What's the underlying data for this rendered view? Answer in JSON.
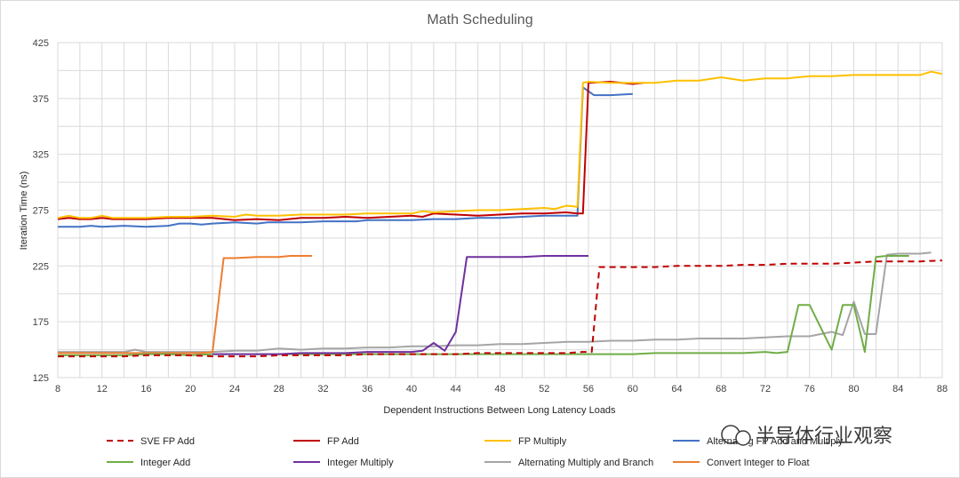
{
  "chart_data": {
    "type": "line",
    "title": "Math Scheduling",
    "xlabel": "Dependent  Instructions Between Long Latency Loads",
    "ylabel": "Iteration Time (ns)",
    "xlim": [
      8,
      88
    ],
    "ylim": [
      125,
      425
    ],
    "x_ticks": [
      "8",
      "12",
      "16",
      "20",
      "24",
      "28",
      "32",
      "36",
      "40",
      "44",
      "48",
      "52",
      "56",
      "60",
      "64",
      "68",
      "72",
      "76",
      "80",
      "84",
      "88"
    ],
    "y_ticks": [
      "125",
      "175",
      "225",
      "275",
      "325",
      "375",
      "425"
    ],
    "grid": true,
    "legend_position": "bottom",
    "series": [
      {
        "name": "SVE FP Add",
        "color": "#c00000",
        "dashed": true,
        "x": [
          8,
          10,
          12,
          14,
          16,
          18,
          20,
          22,
          24,
          26,
          28,
          30,
          32,
          34,
          36,
          38,
          40,
          42,
          44,
          46,
          48,
          50,
          52,
          54,
          55.5,
          56.3,
          57,
          60,
          62,
          64,
          66,
          68,
          70,
          72,
          74,
          76,
          78,
          80,
          82,
          84,
          86,
          88
        ],
        "y": [
          144,
          144,
          144,
          144,
          145,
          145,
          145,
          144,
          144,
          144,
          145,
          145,
          145,
          145,
          146,
          146,
          146,
          146,
          146,
          147,
          147,
          147,
          147,
          147,
          148,
          148,
          224,
          224,
          224,
          225,
          225,
          225,
          226,
          226,
          227,
          227,
          227,
          228,
          229,
          229,
          229,
          230
        ]
      },
      {
        "name": "FP Add",
        "color": "#c00000",
        "dashed": false,
        "x": [
          8,
          9,
          10,
          11,
          12,
          13,
          14,
          16,
          18,
          20,
          22,
          24,
          26,
          28,
          30,
          32,
          34,
          36,
          38,
          40,
          41,
          42,
          44,
          46,
          48,
          50,
          52,
          54,
          55,
          55.5,
          56,
          58,
          60,
          61
        ],
        "y": [
          267,
          268,
          267,
          267,
          268,
          267,
          267,
          267,
          268,
          268,
          268,
          266,
          267,
          266,
          268,
          268,
          269,
          268,
          269,
          270,
          269,
          272,
          271,
          270,
          271,
          272,
          272,
          273,
          272,
          272,
          389,
          390,
          388,
          389
        ]
      },
      {
        "name": "FP Multiply",
        "color": "#ffc000",
        "dashed": false,
        "x": [
          8,
          9,
          10,
          11,
          12,
          13,
          14,
          16,
          18,
          20,
          22,
          24,
          25,
          26,
          28,
          30,
          32,
          34,
          36,
          38,
          40,
          41,
          42,
          44,
          46,
          48,
          50,
          52,
          53,
          54,
          55,
          55.5,
          56,
          58,
          60,
          62,
          64,
          66,
          68,
          70,
          72,
          74,
          76,
          78,
          80,
          82,
          84,
          86,
          87,
          88
        ],
        "y": [
          268,
          270,
          268,
          268,
          270,
          268,
          268,
          268,
          269,
          269,
          270,
          269,
          271,
          270,
          270,
          271,
          271,
          271,
          272,
          272,
          272,
          274,
          273,
          274,
          275,
          275,
          276,
          277,
          276,
          279,
          278,
          389,
          390,
          389,
          389,
          389,
          391,
          391,
          394,
          391,
          393,
          393,
          395,
          395,
          396,
          396,
          396,
          396,
          399,
          397
        ]
      },
      {
        "name": "Alternating FP Add and Multiply",
        "color": "#4472c4",
        "dashed": false,
        "x": [
          8,
          10,
          11,
          12,
          14,
          16,
          18,
          19,
          20,
          21,
          22,
          24,
          26,
          27,
          28,
          30,
          32,
          34,
          35,
          36,
          38,
          40,
          42,
          44,
          46,
          48,
          50,
          52,
          54,
          55,
          55.5,
          56.5,
          58,
          60
        ],
        "y": [
          260,
          260,
          261,
          260,
          261,
          260,
          261,
          263,
          263,
          262,
          263,
          264,
          263,
          264,
          264,
          264,
          265,
          265,
          265,
          266,
          266,
          266,
          267,
          267,
          268,
          268,
          269,
          270,
          270,
          270,
          385,
          378,
          378,
          379
        ]
      },
      {
        "name": "Integer Add",
        "color": "#70ad47",
        "dashed": false,
        "x": [
          8,
          10,
          12,
          14,
          16,
          18,
          20,
          22,
          24,
          26,
          28,
          30,
          32,
          34,
          36,
          38,
          40,
          42,
          44,
          46,
          48,
          50,
          52,
          54,
          56,
          58,
          60,
          62,
          64,
          66,
          68,
          70,
          72,
          73,
          74,
          75,
          76,
          77,
          78,
          79,
          80,
          81,
          82,
          83,
          84,
          85
        ],
        "y": [
          145,
          145,
          145,
          145,
          146,
          146,
          145,
          146,
          146,
          146,
          146,
          146,
          146,
          146,
          146,
          146,
          146,
          146,
          146,
          146,
          146,
          146,
          146,
          146,
          146,
          146,
          146,
          147,
          147,
          147,
          147,
          147,
          148,
          147,
          148,
          190,
          190,
          170,
          150,
          190,
          190,
          148,
          233,
          234,
          234,
          234
        ]
      },
      {
        "name": "Integer Multiply",
        "color": "#7030a0",
        "dashed": false,
        "x": [
          22,
          24,
          26,
          28,
          30,
          32,
          34,
          36,
          38,
          40,
          41,
          42,
          43,
          44,
          45,
          46,
          48,
          50,
          52,
          54,
          56
        ],
        "y": [
          146,
          146,
          146,
          146,
          147,
          147,
          147,
          148,
          148,
          148,
          149,
          156,
          149,
          166,
          233,
          233,
          233,
          233,
          234,
          234,
          234
        ]
      },
      {
        "name": "Alternating Multiply and Branch",
        "color": "#a5a5a5",
        "dashed": false,
        "x": [
          8,
          10,
          12,
          14,
          15,
          16,
          18,
          20,
          22,
          24,
          26,
          28,
          30,
          32,
          34,
          36,
          38,
          40,
          42,
          44,
          46,
          48,
          50,
          52,
          54,
          56,
          58,
          60,
          62,
          64,
          66,
          68,
          70,
          72,
          74,
          76,
          78,
          79,
          80,
          81,
          82,
          83,
          84,
          86,
          87
        ],
        "y": [
          148,
          148,
          148,
          148,
          150,
          148,
          148,
          148,
          148,
          149,
          149,
          151,
          150,
          151,
          151,
          152,
          152,
          153,
          153,
          154,
          154,
          155,
          155,
          156,
          157,
          157,
          158,
          158,
          159,
          159,
          160,
          160,
          160,
          161,
          162,
          162,
          166,
          163,
          193,
          164,
          164,
          235,
          236,
          236,
          237
        ]
      },
      {
        "name": "Convert Integer to Float",
        "color": "#ed7d31",
        "dashed": false,
        "x": [
          8,
          10,
          12,
          14,
          16,
          18,
          20,
          21,
          22,
          23,
          24,
          26,
          28,
          29,
          30,
          31
        ],
        "y": [
          147,
          147,
          147,
          147,
          147,
          147,
          147,
          147,
          148,
          232,
          232,
          233,
          233,
          234,
          234,
          234
        ]
      }
    ]
  },
  "watermark": {
    "text": "半导体行业观察"
  }
}
